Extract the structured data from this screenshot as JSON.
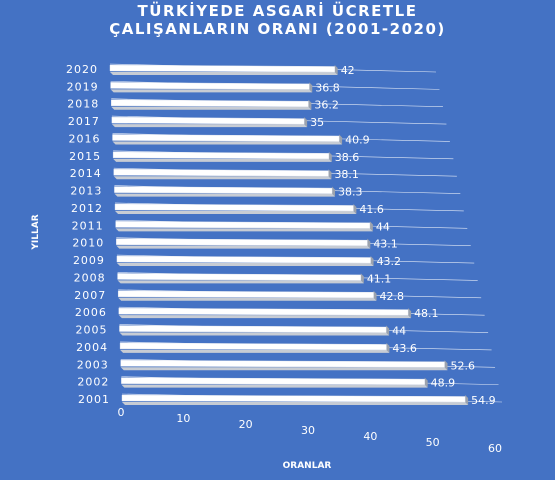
{
  "chart_data": {
    "type": "bar",
    "orientation": "horizontal",
    "title_line1": "TÜRKİYEDE ASGARİ ÜCRETLE",
    "title_line2": "ÇALIŞANLARIN ORANI (2001-2020)",
    "ylabel": "YILLAR",
    "xlabel": "ORANLAR",
    "categories": [
      "2020",
      "2019",
      "2018",
      "2017",
      "2016",
      "2015",
      "2014",
      "2013",
      "2012",
      "2011",
      "2010",
      "2009",
      "2008",
      "2007",
      "2006",
      "2005",
      "2004",
      "2003",
      "2002",
      "2001"
    ],
    "values": [
      42,
      36.8,
      36.2,
      35,
      40.9,
      38.6,
      38.1,
      38.3,
      41.6,
      44,
      43.1,
      43.2,
      41.1,
      42.8,
      48.1,
      44,
      43.6,
      52.6,
      48.9,
      54.9
    ],
    "xticks": [
      "0",
      "10",
      "20",
      "30",
      "40",
      "50",
      "60"
    ],
    "xlim": [
      0,
      60
    ],
    "grid": true,
    "bar_color": "#ffffff",
    "background": "#4472c4"
  }
}
